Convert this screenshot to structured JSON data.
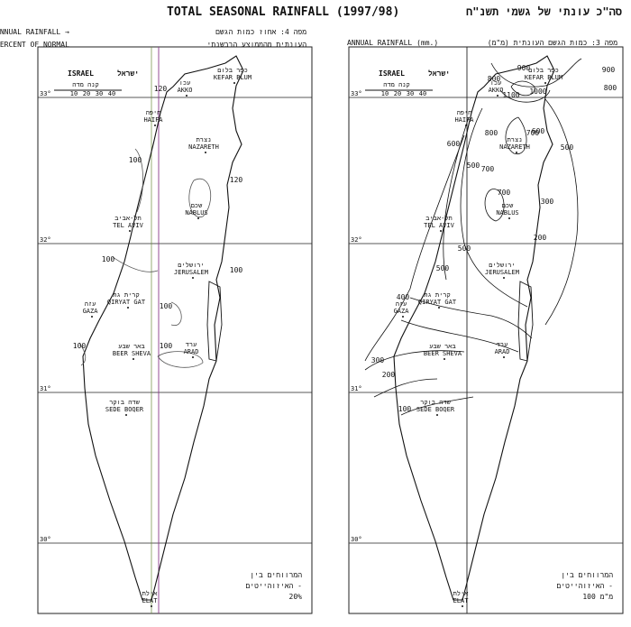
{
  "header": {
    "title": "TOTAL SEASONAL RAINFALL (1997/98)",
    "title_he": "סה\"כ עונתי של גשמי תשנ\"ח"
  },
  "maps": [
    {
      "title_en": [
        "ANNUAL RAINFALL →",
        "PERCENT OF NORMAL"
      ],
      "title_he": [
        "מפה 4: אחוז כמות הגשם",
        "העונתית מהממוצע הרבשנתי"
      ],
      "country": [
        "ISRAEL",
        "ישראל"
      ],
      "scale_he": "קנה מדה",
      "scale": [
        "10",
        "20",
        "30",
        "40"
      ],
      "latitudes": [
        "33°",
        "32°",
        "31°",
        "30°"
      ],
      "places": [
        {
          "he": "כפר בלום",
          "en": "KEFAR BLUM"
        },
        {
          "he": "עכו",
          "en": "AKKO"
        },
        {
          "he": "חיפה",
          "en": "HAIFA"
        },
        {
          "he": "נצרת",
          "en": "NAZARETH"
        },
        {
          "he": "שכם",
          "en": "NABLUS"
        },
        {
          "he": "תל-אביב",
          "en": "TEL AVIV"
        },
        {
          "he": "ירושלים",
          "en": "JERUSALEM"
        },
        {
          "he": "קרית גת",
          "en": "QIRYAT GAT"
        },
        {
          "he": "עזה",
          "en": "GAZA"
        },
        {
          "he": "באר שבע",
          "en": "BEER SHEVA"
        },
        {
          "he": "ערד",
          "en": "ARAD"
        },
        {
          "he": "שדה בוקר",
          "en": "SEDE BOQER"
        },
        {
          "he": "אילת",
          "en": "ELAT"
        }
      ],
      "isohyets": [
        120,
        100,
        120,
        100,
        100,
        100,
        100,
        100
      ],
      "legend": [
        "המרווחים בין",
        "האיזוהייטים -",
        "20%"
      ]
    },
    {
      "title_en": [
        "ANNUAL RAINFALL (mm.)"
      ],
      "title_he": [
        "מפה 3: כמות הגשם העונתית (מ\"מ)"
      ],
      "country": [
        "ISRAEL",
        "ישראל"
      ],
      "scale_he": "קנה מדה",
      "scale": [
        "10",
        "20",
        "30",
        "40"
      ],
      "latitudes": [
        "33°",
        "32°",
        "31°",
        "30°"
      ],
      "places": [
        {
          "he": "כפר בלום",
          "en": "KEFAR BLUM"
        },
        {
          "he": "עכו",
          "en": "AKKO"
        },
        {
          "he": "חיפה",
          "en": "HAIFA"
        },
        {
          "he": "נצרת",
          "en": "NAZARETH"
        },
        {
          "he": "שכם",
          "en": "NABLUS"
        },
        {
          "he": "תל-אביב",
          "en": "TEL AVIV"
        },
        {
          "he": "ירושלים",
          "en": "JERUSALEM"
        },
        {
          "he": "קרית גת",
          "en": "QIRYAT GAT"
        },
        {
          "he": "עזה",
          "en": "GAZA"
        },
        {
          "he": "באר שבע",
          "en": "BEER SHEVA"
        },
        {
          "he": "ערד",
          "en": "ARAD"
        },
        {
          "he": "שדה בוקר",
          "en": "SEDE BOQER"
        },
        {
          "he": "אילת",
          "en": "ELAT"
        }
      ],
      "isohyets": [
        800,
        900,
        1000,
        1100,
        900,
        800,
        800,
        700,
        600,
        500,
        700,
        700,
        600,
        500,
        300,
        200,
        500,
        500,
        400,
        300,
        200,
        100
      ],
      "legend": [
        "המרווחים בין",
        "האיזוהייטים -",
        "100 מ\"מ"
      ]
    }
  ]
}
